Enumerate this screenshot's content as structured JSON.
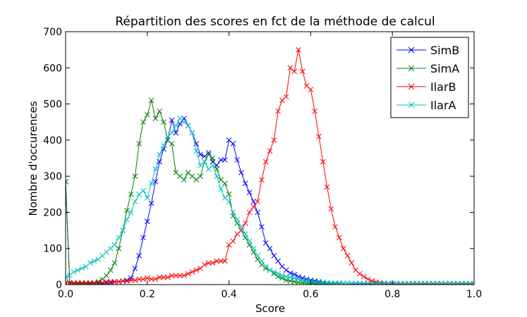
{
  "chart_data": {
    "type": "line",
    "title": "Répartition des scores en fct de la méthode de calcul",
    "xlabel": "Score",
    "ylabel": "Nombre d'occurences",
    "xlim": [
      0,
      1
    ],
    "ylim": [
      0,
      700
    ],
    "xticks": [
      "0.0",
      "0.2",
      "0.4",
      "0.6",
      "0.8",
      "1.0"
    ],
    "yticks": [
      "0",
      "100",
      "200",
      "300",
      "400",
      "500",
      "600",
      "700"
    ],
    "grid": false,
    "legend_position": "top-right",
    "x": [
      0.0,
      0.01,
      0.02,
      0.03,
      0.04,
      0.05,
      0.06,
      0.07,
      0.08,
      0.09,
      0.1,
      0.11,
      0.12,
      0.13,
      0.14,
      0.15,
      0.16,
      0.17,
      0.18,
      0.19,
      0.2,
      0.21,
      0.22,
      0.23,
      0.24,
      0.25,
      0.26,
      0.27,
      0.28,
      0.29,
      0.3,
      0.31,
      0.32,
      0.33,
      0.34,
      0.35,
      0.36,
      0.37,
      0.38,
      0.39,
      0.4,
      0.41,
      0.42,
      0.43,
      0.44,
      0.45,
      0.46,
      0.47,
      0.48,
      0.49,
      0.5,
      0.51,
      0.52,
      0.53,
      0.54,
      0.55,
      0.56,
      0.57,
      0.58,
      0.59,
      0.6,
      0.61,
      0.62,
      0.63,
      0.64,
      0.65,
      0.66,
      0.67,
      0.68,
      0.69,
      0.7,
      0.71,
      0.72,
      0.73,
      0.74,
      0.75,
      0.76,
      0.77,
      0.78,
      0.79,
      0.8,
      0.81,
      0.82,
      0.83,
      0.84,
      0.85,
      0.86,
      0.87,
      0.88,
      0.89,
      0.9,
      0.91,
      0.92,
      0.93,
      0.94,
      0.95,
      0.96,
      0.97,
      0.98,
      0.99,
      1.0
    ],
    "series": [
      {
        "name": "SimB",
        "color": "#0000ff",
        "values": [
          285,
          5,
          3,
          2,
          2,
          2,
          2,
          3,
          3,
          3,
          4,
          5,
          7,
          8,
          10,
          12,
          18,
          45,
          80,
          130,
          175,
          225,
          285,
          340,
          375,
          400,
          455,
          420,
          445,
          460,
          440,
          420,
          390,
          360,
          355,
          365,
          340,
          330,
          345,
          345,
          400,
          390,
          345,
          310,
          280,
          255,
          230,
          200,
          160,
          115,
          100,
          80,
          65,
          50,
          40,
          32,
          28,
          22,
          18,
          15,
          12,
          10,
          8,
          6,
          5,
          4,
          4,
          3,
          3,
          3,
          2,
          2,
          2,
          2,
          2,
          2,
          2,
          2,
          2,
          2,
          2,
          2,
          2,
          2,
          2,
          2,
          2,
          2,
          2,
          2,
          2,
          2,
          2,
          2,
          2,
          2,
          2,
          2,
          2,
          2,
          2
        ]
      },
      {
        "name": "SimA",
        "color": "#008000",
        "values": [
          285,
          3,
          3,
          3,
          3,
          3,
          4,
          5,
          8,
          15,
          25,
          40,
          60,
          100,
          150,
          205,
          250,
          300,
          390,
          450,
          470,
          510,
          460,
          480,
          450,
          400,
          390,
          310,
          300,
          290,
          310,
          300,
          290,
          300,
          340,
          360,
          350,
          320,
          290,
          280,
          250,
          190,
          170,
          150,
          130,
          110,
          90,
          70,
          55,
          45,
          40,
          30,
          22,
          18,
          12,
          10,
          8,
          6,
          5,
          4,
          3,
          3,
          3,
          3,
          3,
          3,
          3,
          3,
          3,
          3,
          3,
          3,
          3,
          3,
          3,
          3,
          3,
          3,
          3,
          3,
          3,
          3,
          3,
          3,
          3,
          3,
          3,
          3,
          3,
          3,
          3,
          3,
          3,
          3,
          3,
          3,
          3,
          3,
          3,
          3,
          3
        ]
      },
      {
        "name": "IlarB",
        "color": "#ff0000",
        "values": [
          5,
          5,
          5,
          5,
          5,
          5,
          5,
          5,
          5,
          5,
          8,
          8,
          8,
          8,
          10,
          10,
          12,
          12,
          15,
          15,
          18,
          15,
          15,
          20,
          20,
          20,
          25,
          25,
          25,
          25,
          30,
          35,
          40,
          45,
          55,
          60,
          60,
          65,
          65,
          65,
          110,
          120,
          140,
          150,
          170,
          200,
          215,
          230,
          290,
          340,
          370,
          400,
          480,
          510,
          520,
          600,
          590,
          650,
          590,
          550,
          540,
          480,
          410,
          340,
          270,
          210,
          160,
          130,
          100,
          80,
          60,
          40,
          30,
          22,
          15,
          10,
          7,
          5,
          4,
          3,
          3,
          2,
          2,
          2,
          2,
          2,
          2,
          2,
          2,
          2,
          2,
          2,
          2,
          2,
          2,
          2,
          2,
          2,
          2,
          2,
          2
        ]
      },
      {
        "name": "IlarA",
        "color": "#00bfbf",
        "values": [
          20,
          25,
          35,
          40,
          45,
          50,
          60,
          65,
          70,
          80,
          90,
          100,
          110,
          130,
          150,
          180,
          200,
          230,
          250,
          260,
          240,
          280,
          320,
          360,
          385,
          410,
          420,
          440,
          460,
          450,
          440,
          420,
          370,
          330,
          340,
          320,
          330,
          300,
          265,
          240,
          230,
          200,
          180,
          160,
          140,
          120,
          100,
          80,
          65,
          50,
          40,
          35,
          30,
          25,
          22,
          20,
          18,
          15,
          12,
          10,
          8,
          7,
          6,
          5,
          5,
          4,
          4,
          4,
          3,
          3,
          3,
          3,
          3,
          3,
          3,
          3,
          3,
          3,
          3,
          3,
          3,
          3,
          3,
          3,
          3,
          3,
          3,
          3,
          3,
          3,
          3,
          3,
          3,
          3,
          3,
          3,
          3,
          3,
          3,
          3,
          3
        ]
      }
    ]
  }
}
